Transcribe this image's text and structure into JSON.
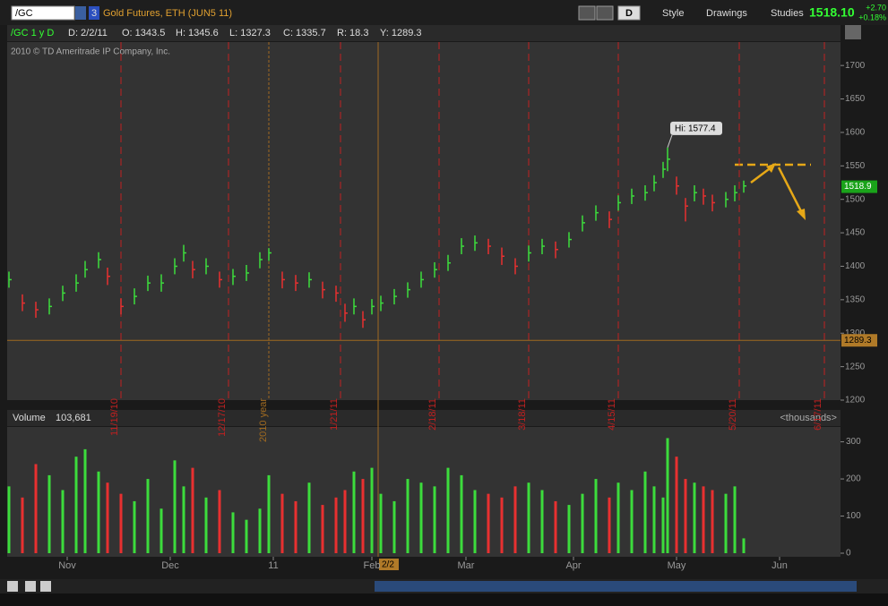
{
  "toolbar": {
    "symbol": "/GC",
    "link": "3",
    "description": "Gold Futures, ETH (JUN5 11)",
    "period": "D",
    "style": "Style",
    "drawings": "Drawings",
    "studies": "Studies",
    "last": "1518.10",
    "change": "+2.70",
    "change_pct": "+0.18%"
  },
  "info": [
    "/GC 1 y D",
    "D: 2/2/11",
    "O: 1343.5",
    "H: 1345.6",
    "L: 1327.3",
    "C: 1335.7",
    "R: 18.3",
    "Y: 1289.3"
  ],
  "copyright": "2010 © TD Ameritrade IP Company, Inc.",
  "volume_header": {
    "label": "Volume",
    "total": "103,681",
    "units": "<thousands>"
  },
  "chart_data": [
    {
      "type": "ohlc",
      "x": [
        0,
        3,
        6,
        9,
        12,
        15,
        17,
        20,
        22,
        25,
        28,
        31,
        34,
        37,
        39,
        41,
        44,
        47,
        50,
        53,
        56,
        58,
        61,
        64,
        67,
        70,
        73,
        75,
        77,
        79,
        81,
        83,
        86,
        89,
        92,
        95,
        98,
        101,
        104,
        107,
        110,
        113,
        116,
        119,
        122,
        125,
        128,
        131,
        134,
        136,
        139,
        142,
        144,
        146,
        147,
        149,
        151,
        153,
        155,
        157,
        160,
        162,
        164
      ],
      "high": [
        1392,
        1358,
        1347,
        1352,
        1371,
        1388,
        1408,
        1421,
        1398,
        1352,
        1367,
        1386,
        1388,
        1412,
        1432,
        1408,
        1412,
        1392,
        1396,
        1402,
        1421,
        1427,
        1392,
        1387,
        1391,
        1377,
        1371,
        1344,
        1352,
        1333,
        1351,
        1356,
        1366,
        1376,
        1392,
        1406,
        1417,
        1442,
        1446,
        1441,
        1428,
        1412,
        1431,
        1441,
        1437,
        1451,
        1476,
        1491,
        1482,
        1506,
        1516,
        1521,
        1536,
        1556,
        1577.4,
        1534,
        1502,
        1521,
        1516,
        1507,
        1511,
        1521,
        1528
      ],
      "low": [
        1368,
        1333,
        1323,
        1328,
        1348,
        1362,
        1383,
        1397,
        1372,
        1328,
        1343,
        1363,
        1362,
        1388,
        1407,
        1382,
        1388,
        1368,
        1372,
        1378,
        1397,
        1408,
        1367,
        1363,
        1368,
        1352,
        1347,
        1317,
        1328,
        1308,
        1328,
        1333,
        1343,
        1353,
        1368,
        1383,
        1393,
        1418,
        1423,
        1418,
        1402,
        1388,
        1407,
        1418,
        1412,
        1428,
        1452,
        1468,
        1457,
        1483,
        1493,
        1498,
        1512,
        1532,
        1542,
        1507,
        1467,
        1497,
        1492,
        1482,
        1488,
        1497,
        1510
      ],
      "close": [
        1380,
        1345,
        1335,
        1340,
        1360,
        1375,
        1395,
        1410,
        1385,
        1340,
        1355,
        1375,
        1375,
        1400,
        1420,
        1395,
        1400,
        1380,
        1385,
        1390,
        1410,
        1420,
        1380,
        1375,
        1380,
        1365,
        1360,
        1330,
        1340,
        1320,
        1340,
        1345,
        1355,
        1365,
        1380,
        1395,
        1405,
        1430,
        1435,
        1430,
        1415,
        1400,
        1420,
        1430,
        1425,
        1440,
        1465,
        1480,
        1470,
        1495,
        1505,
        1510,
        1525,
        1545,
        1560,
        1520,
        1490,
        1510,
        1505,
        1495,
        1500,
        1510,
        1520
      ],
      "up_color": "#3cdc3c",
      "down_color": "#e83030",
      "xlim": [
        -0.4,
        185.6
      ],
      "ylim": [
        1200,
        1735
      ],
      "yticks": [
        1200,
        1250,
        1300,
        1350,
        1400,
        1450,
        1500,
        1550,
        1600,
        1650,
        1700
      ],
      "xticks": [
        {
          "value": 25,
          "label": "11/19/10"
        },
        {
          "value": 49,
          "label": "12/17/10"
        },
        {
          "value": 74,
          "label": "1/21/11"
        },
        {
          "value": 96,
          "label": "2/18/11"
        },
        {
          "value": 116,
          "label": "3/18/11"
        },
        {
          "value": 136,
          "label": "4/15/11"
        },
        {
          "value": 163,
          "label": "5/20/11"
        },
        {
          "value": 182,
          "label": "6/17/11"
        }
      ],
      "year_marker": {
        "value": 58,
        "label": "2010 year"
      },
      "high_label": {
        "x": 147,
        "value": 1577.4,
        "label": "Hi: 1577.4"
      },
      "last_price": {
        "value": 1518.9,
        "label": "1518.9"
      },
      "cursor": {
        "x": 82.4,
        "value": 1289.3,
        "label": "1289.3",
        "x_label": "2/2"
      }
    },
    {
      "type": "bar",
      "x": [
        0,
        3,
        6,
        9,
        12,
        15,
        17,
        20,
        22,
        25,
        28,
        31,
        34,
        37,
        39,
        41,
        44,
        47,
        50,
        53,
        56,
        58,
        61,
        64,
        67,
        70,
        73,
        75,
        77,
        79,
        81,
        83,
        86,
        89,
        92,
        95,
        98,
        101,
        104,
        107,
        110,
        113,
        116,
        119,
        122,
        125,
        128,
        131,
        134,
        136,
        139,
        142,
        144,
        146,
        147,
        149,
        151,
        153,
        155,
        157,
        160,
        162,
        164
      ],
      "values": [
        180,
        150,
        240,
        210,
        170,
        260,
        280,
        220,
        190,
        160,
        140,
        200,
        120,
        250,
        180,
        230,
        150,
        170,
        110,
        90,
        120,
        210,
        160,
        140,
        190,
        130,
        150,
        170,
        220,
        200,
        230,
        160,
        140,
        200,
        190,
        180,
        230,
        210,
        170,
        160,
        150,
        180,
        190,
        170,
        140,
        130,
        160,
        200,
        150,
        190,
        170,
        220,
        180,
        150,
        310,
        260,
        200,
        190,
        180,
        170,
        160,
        180,
        40
      ],
      "xlim": [
        -0.4,
        185.6
      ],
      "ylim": [
        0,
        340
      ],
      "yticks": [
        0,
        100,
        200,
        300
      ],
      "xticks": [
        {
          "value": 13,
          "label": "Nov"
        },
        {
          "value": 36,
          "label": "Dec"
        },
        {
          "value": 59,
          "label": "11"
        },
        {
          "value": 81,
          "label": "Feb"
        },
        {
          "value": 102,
          "label": "Mar"
        },
        {
          "value": 126,
          "label": "Apr"
        },
        {
          "value": 149,
          "label": "May"
        },
        {
          "value": 172,
          "label": "Jun"
        }
      ]
    }
  ]
}
